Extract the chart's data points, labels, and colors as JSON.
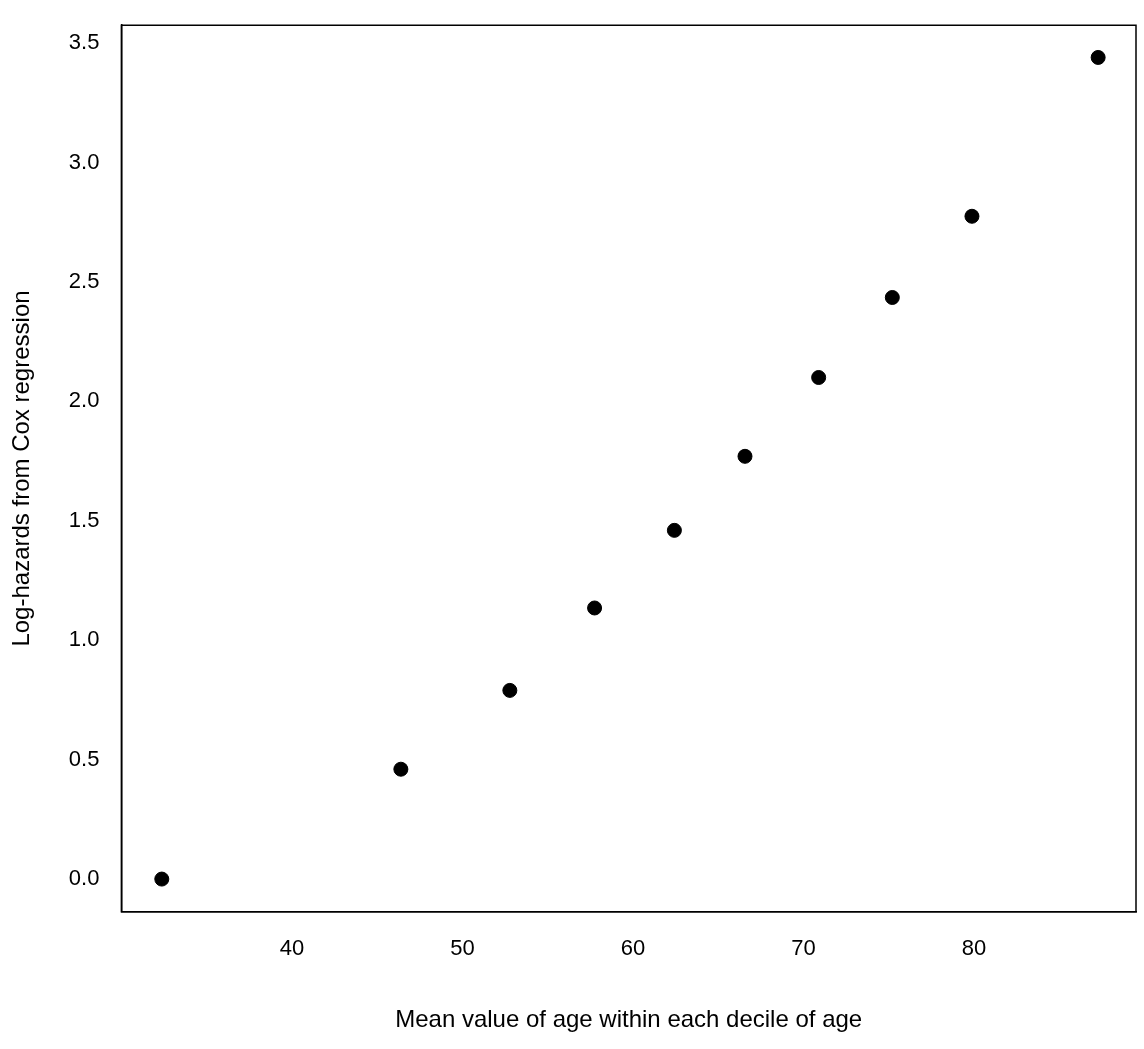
{
  "chart_data": {
    "type": "scatter",
    "xlabel": "Mean value of age within each decile of age",
    "ylabel": "Log-hazards from Cox regression",
    "x": [
      32.37,
      46.39,
      52.78,
      57.75,
      62.43,
      66.57,
      70.89,
      75.21,
      79.88,
      87.28
    ],
    "series": [
      {
        "color": "#000000",
        "values": [
          0,
          0.46,
          0.79,
          1.135,
          1.46,
          1.77,
          2.1,
          2.435,
          2.775,
          3.44
        ]
      }
    ],
    "xlim": [
      30.0,
      89.5
    ],
    "ylim": [
      -0.137,
      3.575
    ],
    "xticks": [
      40,
      50,
      60,
      70,
      80
    ],
    "yticks": [
      {
        "value": 0,
        "label": "0.0"
      },
      {
        "value": 0.5,
        "label": "0.5"
      },
      {
        "value": 1,
        "label": "1.0"
      },
      {
        "value": 1.5,
        "label": "1.5"
      },
      {
        "value": 2,
        "label": "2.0"
      },
      {
        "value": 2.5,
        "label": "2.5"
      },
      {
        "value": 3,
        "label": "3.0"
      },
      {
        "value": 3.5,
        "label": "3.5"
      }
    ],
    "grid": false,
    "legend": false,
    "marker": "circle"
  }
}
